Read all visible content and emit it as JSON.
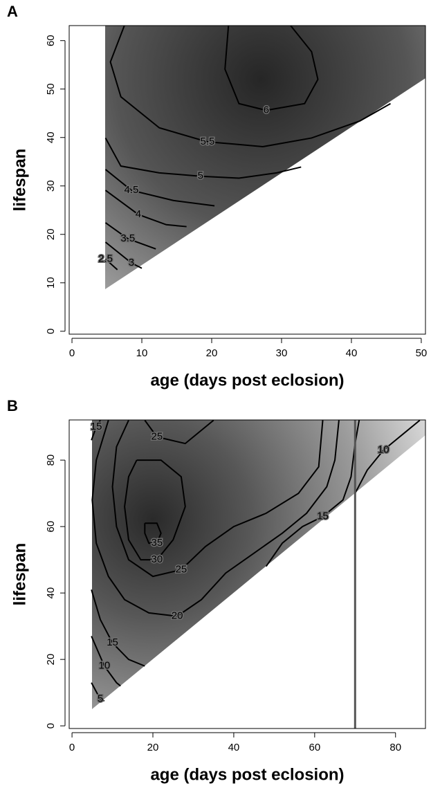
{
  "chart_data": [
    {
      "type": "contour",
      "title": "A",
      "xlabel": "age (days post eclosion)",
      "ylabel": "lifespan",
      "xlim": [
        -0.4,
        50.6
      ],
      "ylim": [
        -0.6,
        63.1
      ],
      "xticks": [
        0,
        10,
        20,
        30,
        40,
        50
      ],
      "yticks": [
        0,
        10,
        20,
        30,
        40,
        50,
        60
      ],
      "contours": [
        {
          "level": 6,
          "x": [
            22.4,
            21.9,
            23.9,
            27.8,
            33.3,
            35.2,
            34.3,
            31.3
          ],
          "y": [
            63.1,
            54.1,
            47,
            45.6,
            47,
            52,
            57.7,
            63.1
          ]
        },
        {
          "level": 5.5,
          "x": [
            7.5,
            5.5,
            7,
            12.5,
            19.4,
            23.5,
            27.3,
            34.3,
            41.2,
            45.6
          ],
          "y": [
            63.1,
            55.6,
            48.4,
            42,
            39.1,
            38.6,
            38.1,
            39.9,
            43.4,
            47
          ]
        },
        {
          "level": 5,
          "x": [
            4.8,
            7,
            12.5,
            18.4,
            23.9,
            29.3,
            32.8
          ],
          "y": [
            39.9,
            34.1,
            32.7,
            32,
            31.6,
            32.7,
            33.9
          ]
        },
        {
          "level": 4.5,
          "x": [
            4.8,
            8.5,
            14.5,
            20.4
          ],
          "y": [
            33.4,
            29.1,
            27,
            25.9
          ]
        },
        {
          "level": 4,
          "x": [
            4.8,
            9.5,
            13.5,
            16.4
          ],
          "y": [
            29.1,
            24.1,
            22,
            21.6
          ]
        },
        {
          "level": 3.5,
          "x": [
            4.8,
            8,
            12
          ],
          "y": [
            22.4,
            19.1,
            17
          ]
        },
        {
          "level": 3,
          "x": [
            4.8,
            8.5,
            10
          ],
          "y": [
            18.4,
            14.1,
            13
          ]
        },
        {
          "level": 2.5,
          "x": [
            4.8,
            6.5
          ],
          "y": [
            14.9,
            12.7
          ]
        }
      ]
    },
    {
      "type": "contour",
      "title": "B",
      "xlabel": "age (days post eclosion)",
      "ylabel": "lifespan",
      "xlim": [
        -0.7,
        87.4
      ],
      "ylim": [
        -0.8,
        92.1
      ],
      "xticks": [
        0,
        20,
        40,
        60,
        80
      ],
      "yticks": [
        0,
        20,
        40,
        60,
        80
      ],
      "vline": 70,
      "contours": [
        {
          "level": 35,
          "x": [
            18,
            21,
            22,
            21,
            19,
            18,
            18
          ],
          "y": [
            61,
            61,
            58,
            55,
            55,
            58,
            61
          ]
        },
        {
          "level": 30,
          "x": [
            16,
            22,
            27,
            28,
            25,
            21,
            17,
            14,
            13,
            14,
            16
          ],
          "y": [
            80,
            80,
            75,
            66,
            56,
            50,
            50,
            56,
            66,
            75,
            80
          ]
        },
        {
          "level": 25,
          "x": [
            18,
            21,
            28,
            35
          ],
          "y": [
            92,
            87,
            85,
            92
          ]
        },
        {
          "level": 25,
          "x": [
            14,
            11,
            10,
            11,
            14,
            20,
            27,
            33,
            40,
            48,
            56,
            61,
            62
          ],
          "y": [
            92,
            84,
            72,
            60,
            50,
            45,
            47,
            54,
            60,
            64,
            70,
            78,
            92
          ]
        },
        {
          "level": 20,
          "x": [
            9,
            6,
            5,
            6,
            9,
            13,
            19,
            26,
            32,
            38,
            45,
            52,
            58,
            63,
            65,
            66
          ],
          "y": [
            92,
            80,
            68,
            55,
            45,
            38,
            34,
            33,
            38,
            46,
            52,
            58,
            64,
            72,
            80,
            92
          ]
        },
        {
          "level": 15,
          "x": [
            4.8,
            6,
            7
          ],
          "y": [
            86,
            90,
            92
          ]
        },
        {
          "level": 15,
          "x": [
            4.8,
            7,
            10,
            14,
            18
          ],
          "y": [
            41,
            32,
            25,
            20,
            18
          ]
        },
        {
          "level": 15,
          "x": [
            48,
            52,
            57,
            62,
            67,
            69,
            70,
            71
          ],
          "y": [
            48,
            55,
            60,
            63,
            68,
            75,
            85,
            92
          ]
        },
        {
          "level": 10,
          "x": [
            4.8,
            8,
            11,
            12
          ],
          "y": [
            27,
            18,
            13,
            12
          ]
        },
        {
          "level": 10,
          "x": [
            70,
            73,
            77,
            82,
            86
          ],
          "y": [
            70,
            77,
            83,
            88,
            92
          ]
        },
        {
          "level": 5,
          "x": [
            4.8,
            7,
            8
          ],
          "y": [
            13,
            8,
            7.5
          ]
        }
      ]
    }
  ]
}
